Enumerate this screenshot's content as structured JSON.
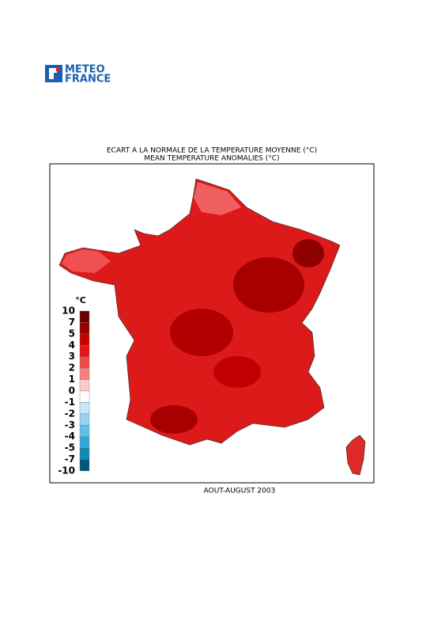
{
  "header": {
    "logo": [
      "METEO",
      "FRANCE"
    ]
  },
  "map": {
    "title": "ECART A LA NORMALE DE LA TEMPERATURE MOYENNE (°C)",
    "subtitle": "MEAN TEMPERATURE ANOMALIES (°C)",
    "caption": "AOUT-AUGUST 2003"
  },
  "legend": {
    "unit": "°C",
    "ticks": [
      10,
      7,
      5,
      4,
      3,
      2,
      1,
      0,
      -1,
      -2,
      -3,
      -4,
      -5,
      -7,
      -10
    ],
    "colors": [
      "#6b0000",
      "#9a0000",
      "#c80000",
      "#e81414",
      "#f04a4a",
      "#f48282",
      "#fccaca",
      "#ffffff",
      "#c8e8f8",
      "#98d4f0",
      "#60c0e8",
      "#30a8d8",
      "#1088b8",
      "#005878"
    ]
  }
}
